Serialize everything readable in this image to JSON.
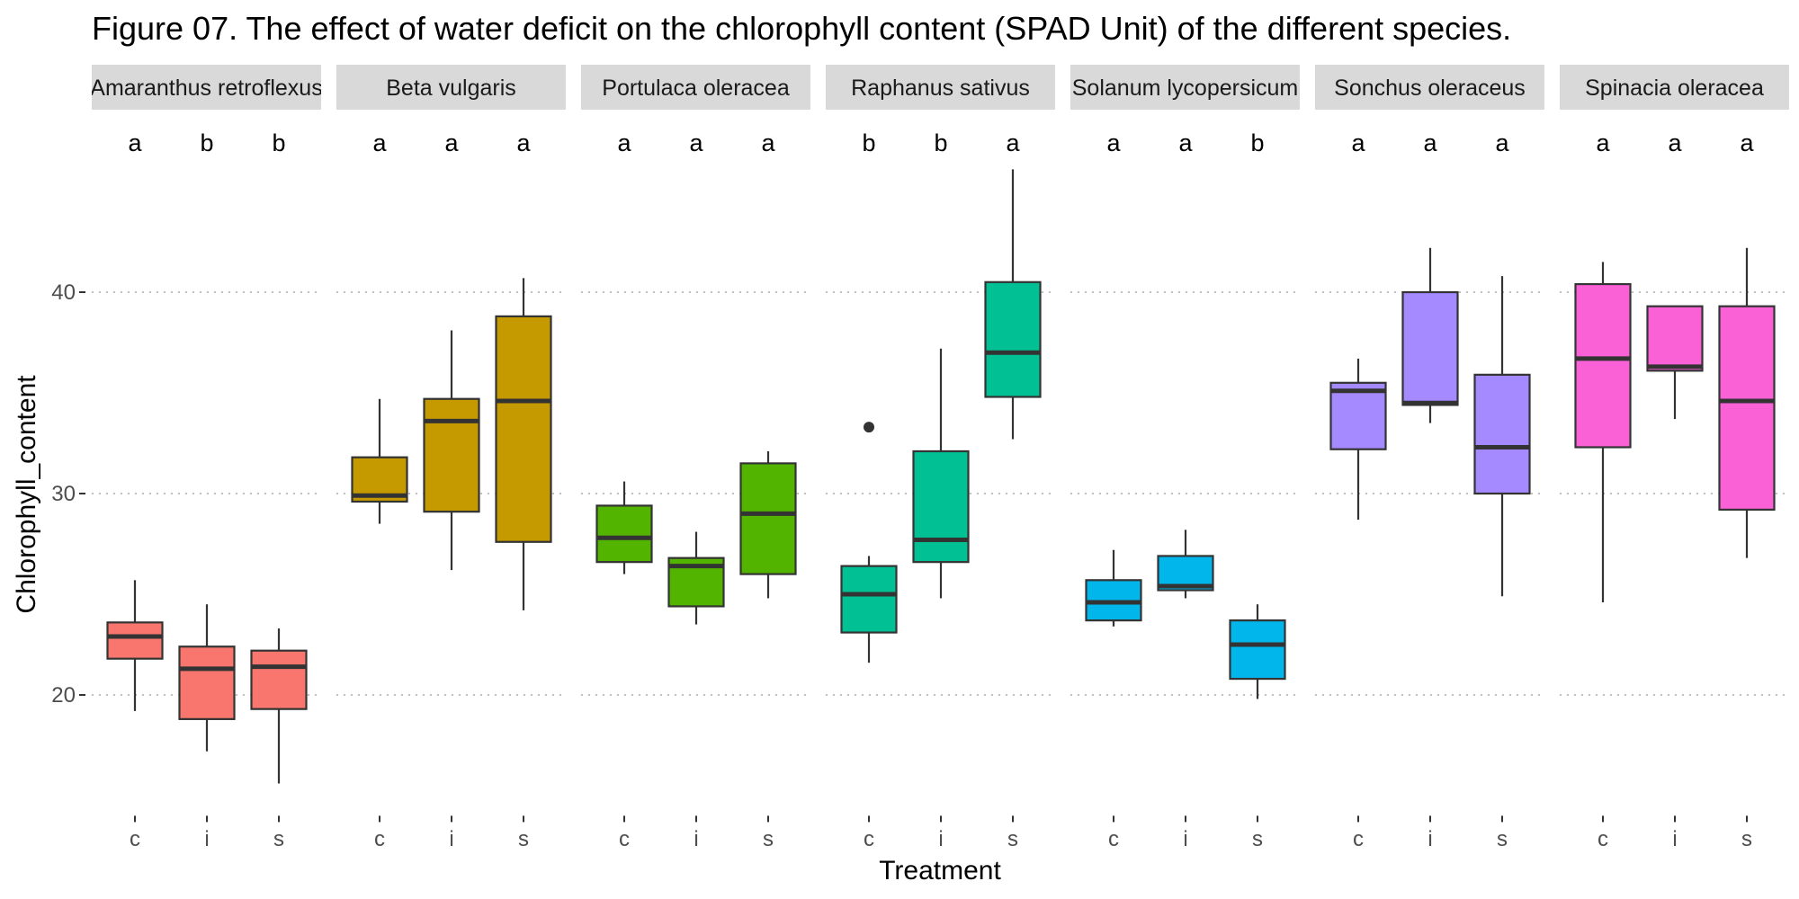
{
  "chart_data": {
    "type": "box",
    "title": "Figure 07. The effect of water deficit  on the chlorophyll content (SPAD Unit) of the different species.",
    "xlabel": "Treatment",
    "ylabel": "Chlorophyll_content",
    "ylim": [
      14,
      46.8
    ],
    "y_ticks": [
      20,
      30,
      40
    ],
    "grid": "major-y dotted",
    "treatments": [
      "c",
      "i",
      "s"
    ],
    "panels": [
      {
        "species": "Amaranthus retroflexus",
        "color": "#F8766D",
        "letters": [
          "a",
          "b",
          "b"
        ],
        "boxes": [
          {
            "treatment": "c",
            "min": 19.2,
            "q1": 21.8,
            "median": 22.9,
            "q3": 23.6,
            "max": 25.7,
            "outliers": []
          },
          {
            "treatment": "i",
            "min": 17.2,
            "q1": 18.8,
            "median": 21.3,
            "q3": 22.4,
            "max": 24.5,
            "outliers": []
          },
          {
            "treatment": "s",
            "min": 15.6,
            "q1": 19.3,
            "median": 21.4,
            "q3": 22.2,
            "max": 23.3,
            "outliers": []
          }
        ]
      },
      {
        "species": "Beta vulgaris",
        "color": "#C49A00",
        "letters": [
          "a",
          "a",
          "a"
        ],
        "boxes": [
          {
            "treatment": "c",
            "min": 28.5,
            "q1": 29.6,
            "median": 29.9,
            "q3": 31.8,
            "max": 34.7,
            "outliers": []
          },
          {
            "treatment": "i",
            "min": 26.2,
            "q1": 29.1,
            "median": 33.6,
            "q3": 34.7,
            "max": 38.1,
            "outliers": []
          },
          {
            "treatment": "s",
            "min": 24.2,
            "q1": 27.6,
            "median": 34.6,
            "q3": 38.8,
            "max": 40.7,
            "outliers": []
          }
        ]
      },
      {
        "species": "Portulaca oleracea",
        "color": "#53B400",
        "letters": [
          "a",
          "a",
          "a"
        ],
        "boxes": [
          {
            "treatment": "c",
            "min": 26.0,
            "q1": 26.6,
            "median": 27.8,
            "q3": 29.4,
            "max": 30.6,
            "outliers": []
          },
          {
            "treatment": "i",
            "min": 23.5,
            "q1": 24.4,
            "median": 26.4,
            "q3": 26.8,
            "max": 28.1,
            "outliers": []
          },
          {
            "treatment": "s",
            "min": 24.8,
            "q1": 26.0,
            "median": 29.0,
            "q3": 31.5,
            "max": 32.1,
            "outliers": []
          }
        ]
      },
      {
        "species": "Raphanus sativus",
        "color": "#00C094",
        "letters": [
          "b",
          "b",
          "a"
        ],
        "boxes": [
          {
            "treatment": "c",
            "min": 21.6,
            "q1": 23.1,
            "median": 25.0,
            "q3": 26.4,
            "max": 26.9,
            "outliers": [
              33.3
            ]
          },
          {
            "treatment": "i",
            "min": 24.8,
            "q1": 26.6,
            "median": 27.7,
            "q3": 32.1,
            "max": 37.2,
            "outliers": []
          },
          {
            "treatment": "s",
            "min": 32.7,
            "q1": 34.8,
            "median": 37.0,
            "q3": 40.5,
            "max": 46.1,
            "outliers": []
          }
        ]
      },
      {
        "species": "Solanum lycopersicum",
        "color": "#00B6EB",
        "letters": [
          "a",
          "a",
          "b"
        ],
        "boxes": [
          {
            "treatment": "c",
            "min": 23.4,
            "q1": 23.7,
            "median": 24.6,
            "q3": 25.7,
            "max": 27.2,
            "outliers": []
          },
          {
            "treatment": "i",
            "min": 24.8,
            "q1": 25.2,
            "median": 25.4,
            "q3": 26.9,
            "max": 28.2,
            "outliers": []
          },
          {
            "treatment": "s",
            "min": 19.8,
            "q1": 20.8,
            "median": 22.5,
            "q3": 23.7,
            "max": 24.5,
            "outliers": []
          }
        ]
      },
      {
        "species": "Sonchus oleraceus",
        "color": "#A58AFF",
        "letters": [
          "a",
          "a",
          "a"
        ],
        "boxes": [
          {
            "treatment": "c",
            "min": 28.7,
            "q1": 32.2,
            "median": 35.1,
            "q3": 35.5,
            "max": 36.7,
            "outliers": []
          },
          {
            "treatment": "i",
            "min": 33.5,
            "q1": 34.4,
            "median": 34.5,
            "q3": 40.0,
            "max": 42.2,
            "outliers": []
          },
          {
            "treatment": "s",
            "min": 24.9,
            "q1": 30.0,
            "median": 32.3,
            "q3": 35.9,
            "max": 40.8,
            "outliers": []
          }
        ]
      },
      {
        "species": "Spinacia oleracea",
        "color": "#FB61D7",
        "letters": [
          "a",
          "a",
          "a"
        ],
        "boxes": [
          {
            "treatment": "c",
            "min": 24.6,
            "q1": 32.3,
            "median": 36.7,
            "q3": 40.4,
            "max": 41.5,
            "outliers": []
          },
          {
            "treatment": "i",
            "min": 33.7,
            "q1": 36.1,
            "median": 36.3,
            "q3": 39.3,
            "max": 39.3,
            "outliers": []
          },
          {
            "treatment": "s",
            "min": 26.8,
            "q1": 29.2,
            "median": 34.6,
            "q3": 39.3,
            "max": 42.2,
            "outliers": []
          }
        ]
      }
    ]
  }
}
